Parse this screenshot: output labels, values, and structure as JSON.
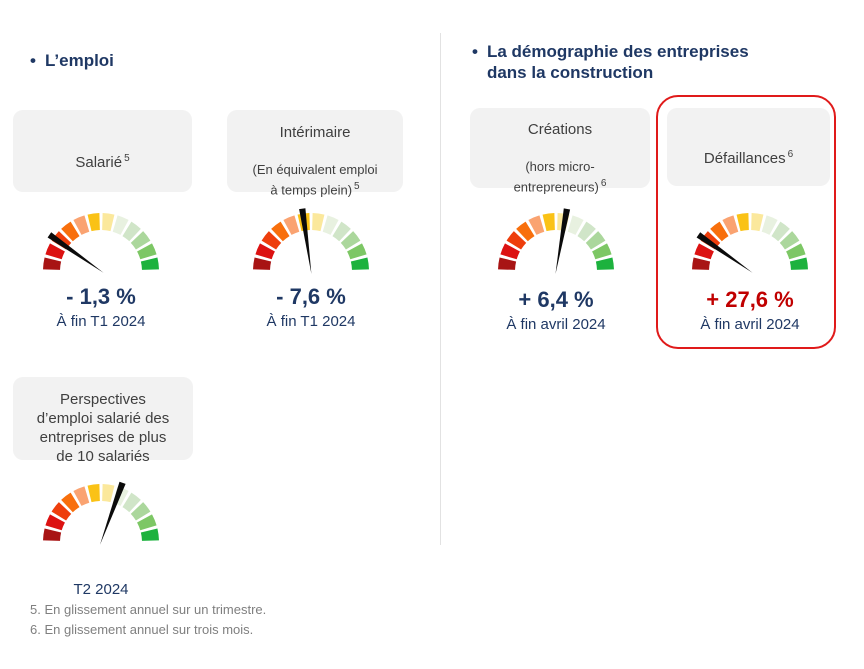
{
  "colors": {
    "navy": "#1F3864",
    "value_red": "#C00000",
    "card_bg": "#F2F2F2",
    "card_text": "#3F3F3F",
    "divider": "#E2E2E2",
    "highlight_border": "#E01A1A",
    "footnote_gray": "#7F7F7F",
    "needle": "#0B0B0B"
  },
  "gauge_palette": [
    "#A81414",
    "#DC1212",
    "#EE3E0C",
    "#F86F0C",
    "#FAA371",
    "#FAC216",
    "#FBE89C",
    "#E8F1E0",
    "#D0E5C8",
    "#ABD79C",
    "#7DC765",
    "#1DB23E"
  ],
  "header_left": {
    "bullet": "•",
    "title": "L’emploi"
  },
  "header_right": {
    "bullet": "•",
    "title": "La démographie des entreprises\ndans la construction"
  },
  "cards": {
    "salarie": {
      "title": "Salarié",
      "sup": "5"
    },
    "interimaire": {
      "title": "Intérimaire",
      "subtitle": "(En équivalent emploi\nà temps plein)",
      "subtitle_sup": "5"
    },
    "perspectives": {
      "title": "Perspectives\nd’emploi salarié des\nentreprises de plus\nde 10 salariés"
    },
    "creations": {
      "title": "Créations",
      "subtitle": "(hors micro-\nentrepreneurs)",
      "subtitle_sup": "6"
    },
    "defaillances": {
      "title": "Défaillances",
      "sup": "6"
    }
  },
  "gauges": {
    "salarie": {
      "needle_deg": 145
    },
    "interimaire": {
      "needle_deg": 98
    },
    "perspectives": {
      "needle_deg": 70
    },
    "creations": {
      "needle_deg": 80
    },
    "defaillances": {
      "needle_deg": 145
    }
  },
  "readings": {
    "salarie": {
      "value": "- 1,3 %",
      "period": "À fin T1 2024"
    },
    "interimaire": {
      "value": "- 7,6 %",
      "period": "À fin T1 2024"
    },
    "perspectives": {
      "period": "T2 2024"
    },
    "creations": {
      "value": "+ 6,4 %",
      "period": "À fin avril 2024"
    },
    "defaillances": {
      "value": "+ 27,6 %",
      "period": "À fin avril 2024"
    }
  },
  "footnotes": {
    "line1": "5. En glissement annuel sur un trimestre.",
    "line2": "6. En glissement annuel sur trois mois."
  },
  "chart_data": [
    {
      "type": "gauge",
      "title": "Salarié",
      "footnote_ref": 5,
      "value_pct": -1.3,
      "value_label": "- 1,3 %",
      "period": "À fin T1 2024",
      "segments": 12,
      "scale": "red (bad) to green (good), 180° arc",
      "needle_zone": "red"
    },
    {
      "type": "gauge",
      "title": "Intérimaire (En équivalent emploi à temps plein)",
      "footnote_ref": 5,
      "value_pct": -7.6,
      "value_label": "- 7,6 %",
      "period": "À fin T1 2024",
      "segments": 12,
      "scale": "red (bad) to green (good), 180° arc",
      "needle_zone": "orange-yellow"
    },
    {
      "type": "gauge",
      "title": "Perspectives d’emploi salarié des entreprises de plus de 10 salariés",
      "value_pct": null,
      "value_label": "",
      "period": "T2 2024",
      "segments": 12,
      "scale": "red (bad) to green (good), 180° arc",
      "needle_zone": "yellow-pale-green"
    },
    {
      "type": "gauge",
      "title": "Créations (hors micro-entrepreneurs)",
      "footnote_ref": 6,
      "value_pct": 6.4,
      "value_label": "+ 6,4 %",
      "period": "À fin avril 2024",
      "segments": 12,
      "scale": "red (bad) to green (good), 180° arc",
      "needle_zone": "pale-yellow"
    },
    {
      "type": "gauge",
      "title": "Défaillances",
      "footnote_ref": 6,
      "value_pct": 27.6,
      "value_label": "+ 27,6 %",
      "period": "À fin avril 2024",
      "segments": 12,
      "scale": "red (bad) to green (good), 180° arc",
      "needle_zone": "red",
      "highlighted": true
    }
  ]
}
